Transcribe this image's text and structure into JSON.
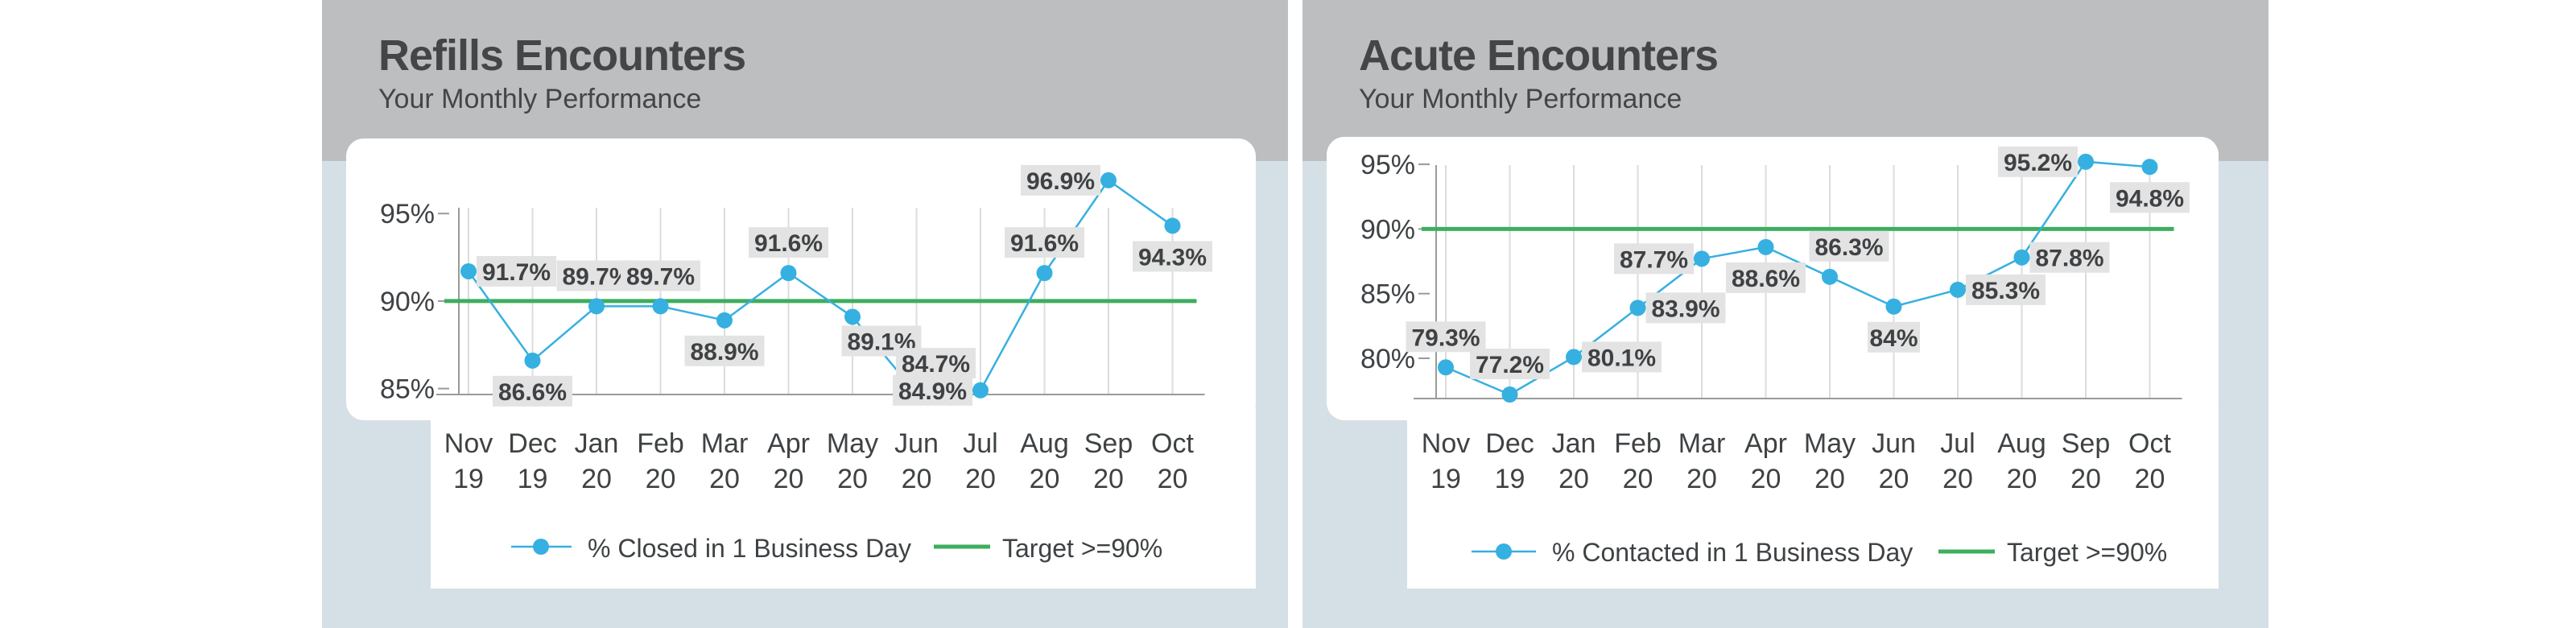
{
  "colors": {
    "line": "#36b0e0",
    "target": "#3dae5e",
    "label_bg": "#e3e3e3",
    "text": "#3f4244"
  },
  "chart_data": [
    {
      "type": "line",
      "title": "Refills Encounters",
      "subtitle": "Your Monthly Performance",
      "categories": [
        "Nov 19",
        "Dec 19",
        "Jan 20",
        "Feb 20",
        "Mar 20",
        "Apr 20",
        "May 20",
        "Jun 20",
        "Jul 20",
        "Aug 20",
        "Sep 20",
        "Oct 20"
      ],
      "series": [
        {
          "name": "% Closed in 1 Business Day",
          "values": [
            91.7,
            86.6,
            89.7,
            89.7,
            88.9,
            91.6,
            89.1,
            84.7,
            84.9,
            91.6,
            96.9,
            94.3
          ]
        }
      ],
      "data_labels": [
        "91.7%",
        "86.6%",
        "89.7%",
        "89.7%",
        "88.9%",
        "91.6%",
        "89.1%",
        "84.7%",
        "84.9%",
        "91.6%",
        "96.9%",
        "94.3%"
      ],
      "label_pos": [
        "right",
        "below",
        "above",
        "above",
        "below",
        "above",
        "below-right",
        "above-right",
        "left",
        "above",
        "left",
        "below"
      ],
      "target": {
        "name": "Target >=90%",
        "value": 90
      },
      "yticks": [
        85,
        90,
        95
      ],
      "ytick_labels": [
        "85%",
        "90%",
        "95%"
      ],
      "ylim": [
        84.2,
        98
      ],
      "legend": "bottom",
      "grid": "vertical"
    },
    {
      "type": "line",
      "title": "Acute Encounters",
      "subtitle": "Your Monthly Performance",
      "categories": [
        "Nov 19",
        "Dec 19",
        "Jan 20",
        "Feb 20",
        "Mar 20",
        "Apr 20",
        "May 20",
        "Jun 20",
        "Jul 20",
        "Aug 20",
        "Sep 20",
        "Oct 20"
      ],
      "series": [
        {
          "name": "% Contacted in 1 Business Day",
          "values": [
            79.3,
            77.2,
            80.1,
            83.9,
            87.7,
            88.6,
            86.3,
            84,
            85.3,
            87.8,
            95.2,
            94.8
          ]
        }
      ],
      "data_labels": [
        "79.3%",
        "77.2%",
        "80.1%",
        "83.9%",
        "87.7%",
        "88.6%",
        "86.3%",
        "84%",
        "85.3%",
        "87.8%",
        "95.2%",
        "94.8%"
      ],
      "label_pos": [
        "above",
        "above",
        "right",
        "right",
        "left",
        "below",
        "above-right",
        "below",
        "right",
        "right",
        "left",
        "below"
      ],
      "target": {
        "name": "Target >=90%",
        "value": 90
      },
      "yticks": [
        80,
        85,
        90,
        95
      ],
      "ytick_labels": [
        "80%",
        "85%",
        "90%",
        "95%"
      ],
      "ylim": [
        77.2,
        96
      ],
      "legend": "bottom",
      "grid": "vertical"
    }
  ]
}
